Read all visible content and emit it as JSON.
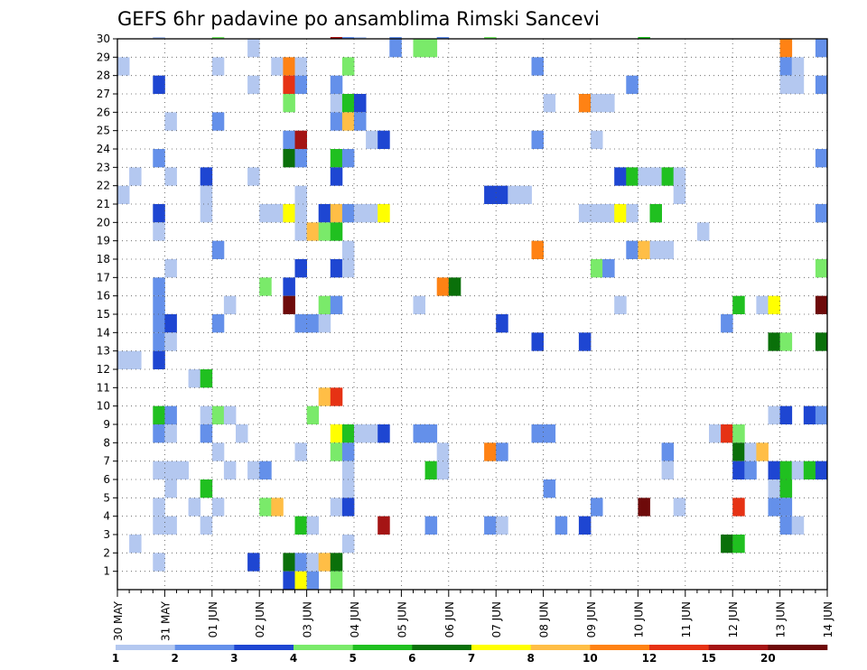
{
  "chart_data": {
    "type": "heatmap",
    "title": "GEFS 6hr padavine po ansamblima Rimski Sancevi",
    "x_tick_labels": [
      "30 MAY",
      "31 MAY",
      "01 JUN",
      "02 JUN",
      "03 JUN",
      "04 JUN",
      "05 JUN",
      "06 JUN",
      "07 JUN",
      "08 JUN",
      "09 JUN",
      "10 JUN",
      "11 JUN",
      "12 JUN",
      "13 JUN",
      "14 JUN"
    ],
    "y_tick_labels": [
      "1",
      "2",
      "3",
      "4",
      "5",
      "6",
      "7",
      "8",
      "9",
      "10",
      "11",
      "12",
      "13",
      "14",
      "15",
      "16",
      "17",
      "18",
      "19",
      "20",
      "21",
      "22",
      "23",
      "24",
      "25",
      "26",
      "27",
      "28",
      "29",
      "30"
    ],
    "x_unit": "6h step from 30 MAY 00Z",
    "x_range": [
      0,
      60
    ],
    "y_range": [
      0,
      30
    ],
    "colorbar": {
      "labels": [
        "1",
        "2",
        "3",
        "4",
        "5",
        "6",
        "7",
        "8",
        "10",
        "12",
        "15",
        "20"
      ],
      "colors": [
        "#b4c8f0",
        "#6490ea",
        "#1e46d2",
        "#7aea6a",
        "#20c020",
        "#0a700a",
        "#ffff00",
        "#ffbe46",
        "#ff8214",
        "#e63214",
        "#a51414",
        "#6e0a0a"
      ]
    },
    "cells": [
      {
        "m": 30,
        "t": [
          [
            3,
            1
          ],
          [
            8,
            4
          ],
          [
            18,
            11
          ],
          [
            19,
            2
          ],
          [
            20,
            1
          ],
          [
            23,
            2
          ],
          [
            27,
            2
          ],
          [
            31,
            4
          ],
          [
            44,
            5
          ]
        ]
      },
      {
        "m": 29,
        "t": [
          [
            11,
            1
          ],
          [
            23,
            2
          ],
          [
            25,
            4
          ],
          [
            26,
            4
          ],
          [
            56,
            9
          ],
          [
            59,
            2
          ]
        ]
      },
      {
        "m": 28,
        "t": [
          [
            0,
            1
          ],
          [
            8,
            1
          ],
          [
            13,
            1
          ],
          [
            14,
            9
          ],
          [
            15,
            1
          ],
          [
            19,
            4
          ],
          [
            35,
            2
          ],
          [
            56,
            2
          ],
          [
            57,
            1
          ]
        ]
      },
      {
        "m": 27,
        "t": [
          [
            3,
            3
          ],
          [
            11,
            1
          ],
          [
            14,
            10
          ],
          [
            15,
            2
          ],
          [
            18,
            2
          ],
          [
            43,
            2
          ],
          [
            56,
            1
          ],
          [
            57,
            1
          ],
          [
            59,
            2
          ]
        ]
      },
      {
        "m": 26,
        "t": [
          [
            14,
            4
          ],
          [
            18,
            1
          ],
          [
            19,
            5
          ],
          [
            20,
            3
          ],
          [
            36,
            1
          ],
          [
            39,
            9
          ],
          [
            40,
            1
          ],
          [
            41,
            1
          ]
        ]
      },
      {
        "m": 25,
        "t": [
          [
            4,
            1
          ],
          [
            8,
            2
          ],
          [
            18,
            2
          ],
          [
            19,
            8
          ],
          [
            20,
            2
          ]
        ]
      },
      {
        "m": 24,
        "t": [
          [
            14,
            2
          ],
          [
            15,
            11
          ],
          [
            21,
            1
          ],
          [
            22,
            3
          ],
          [
            35,
            2
          ],
          [
            40,
            1
          ]
        ]
      },
      {
        "m": 23,
        "t": [
          [
            3,
            2
          ],
          [
            14,
            6
          ],
          [
            15,
            2
          ],
          [
            18,
            5
          ],
          [
            19,
            2
          ],
          [
            59,
            2
          ]
        ]
      },
      {
        "m": 22,
        "t": [
          [
            1,
            1
          ],
          [
            4,
            1
          ],
          [
            7,
            3
          ],
          [
            11,
            1
          ],
          [
            18,
            3
          ],
          [
            42,
            3
          ],
          [
            43,
            5
          ],
          [
            44,
            1
          ],
          [
            45,
            1
          ],
          [
            46,
            5
          ],
          [
            47,
            1
          ]
        ]
      },
      {
        "m": 21,
        "t": [
          [
            0,
            1
          ],
          [
            7,
            1
          ],
          [
            15,
            1
          ],
          [
            31,
            3
          ],
          [
            32,
            3
          ],
          [
            33,
            1
          ],
          [
            34,
            1
          ],
          [
            47,
            1
          ]
        ]
      },
      {
        "m": 20,
        "t": [
          [
            3,
            3
          ],
          [
            7,
            1
          ],
          [
            12,
            1
          ],
          [
            13,
            1
          ],
          [
            14,
            7
          ],
          [
            15,
            1
          ],
          [
            17,
            3
          ],
          [
            18,
            8
          ],
          [
            19,
            2
          ],
          [
            20,
            1
          ],
          [
            21,
            1
          ],
          [
            22,
            7
          ],
          [
            39,
            1
          ],
          [
            40,
            1
          ],
          [
            41,
            1
          ],
          [
            42,
            7
          ],
          [
            43,
            1
          ],
          [
            45,
            5
          ],
          [
            59,
            2
          ]
        ]
      },
      {
        "m": 19,
        "t": [
          [
            3,
            1
          ],
          [
            15,
            1
          ],
          [
            16,
            8
          ],
          [
            17,
            4
          ],
          [
            18,
            5
          ],
          [
            49,
            1
          ]
        ]
      },
      {
        "m": 18,
        "t": [
          [
            8,
            2
          ],
          [
            19,
            1
          ],
          [
            35,
            9
          ],
          [
            43,
            2
          ],
          [
            44,
            8
          ],
          [
            45,
            1
          ],
          [
            46,
            1
          ]
        ]
      },
      {
        "m": 17,
        "t": [
          [
            4,
            1
          ],
          [
            15,
            3
          ],
          [
            18,
            3
          ],
          [
            19,
            1
          ],
          [
            40,
            4
          ],
          [
            41,
            2
          ],
          [
            59,
            4
          ]
        ]
      },
      {
        "m": 16,
        "t": [
          [
            3,
            2
          ],
          [
            12,
            4
          ],
          [
            14,
            3
          ],
          [
            27,
            9
          ],
          [
            28,
            6
          ]
        ]
      },
      {
        "m": 15,
        "t": [
          [
            3,
            2
          ],
          [
            9,
            1
          ],
          [
            14,
            12
          ],
          [
            17,
            4
          ],
          [
            18,
            2
          ],
          [
            25,
            1
          ],
          [
            42,
            1
          ],
          [
            52,
            5
          ],
          [
            54,
            1
          ],
          [
            55,
            7
          ],
          [
            59,
            12
          ]
        ]
      },
      {
        "m": 14,
        "t": [
          [
            3,
            2
          ],
          [
            4,
            3
          ],
          [
            8,
            2
          ],
          [
            15,
            2
          ],
          [
            16,
            2
          ],
          [
            17,
            1
          ],
          [
            32,
            3
          ],
          [
            51,
            2
          ]
        ]
      },
      {
        "m": 13,
        "t": [
          [
            3,
            2
          ],
          [
            4,
            1
          ],
          [
            35,
            3
          ],
          [
            39,
            3
          ],
          [
            55,
            6
          ],
          [
            56,
            4
          ],
          [
            59,
            6
          ]
        ]
      },
      {
        "m": 12,
        "t": [
          [
            0,
            1
          ],
          [
            1,
            1
          ],
          [
            3,
            3
          ]
        ]
      },
      {
        "m": 11,
        "t": [
          [
            6,
            1
          ],
          [
            7,
            5
          ]
        ]
      },
      {
        "m": 10,
        "t": [
          [
            17,
            8
          ],
          [
            18,
            10
          ]
        ]
      },
      {
        "m": 9,
        "t": [
          [
            3,
            5
          ],
          [
            4,
            2
          ],
          [
            7,
            1
          ],
          [
            8,
            4
          ],
          [
            9,
            1
          ],
          [
            16,
            4
          ],
          [
            55,
            1
          ],
          [
            56,
            3
          ],
          [
            58,
            3
          ],
          [
            59,
            2
          ]
        ]
      },
      {
        "m": 8,
        "t": [
          [
            3,
            2
          ],
          [
            4,
            1
          ],
          [
            7,
            2
          ],
          [
            10,
            1
          ],
          [
            18,
            7
          ],
          [
            19,
            5
          ],
          [
            20,
            1
          ],
          [
            21,
            1
          ],
          [
            22,
            3
          ],
          [
            25,
            2
          ],
          [
            26,
            2
          ],
          [
            35,
            2
          ],
          [
            36,
            2
          ],
          [
            50,
            1
          ],
          [
            51,
            10
          ],
          [
            52,
            4
          ]
        ]
      },
      {
        "m": 7,
        "t": [
          [
            8,
            1
          ],
          [
            15,
            1
          ],
          [
            18,
            4
          ],
          [
            19,
            2
          ],
          [
            27,
            1
          ],
          [
            31,
            9
          ],
          [
            32,
            2
          ],
          [
            46,
            2
          ],
          [
            52,
            6
          ],
          [
            53,
            1
          ],
          [
            54,
            8
          ]
        ]
      },
      {
        "m": 6,
        "t": [
          [
            3,
            1
          ],
          [
            4,
            1
          ],
          [
            5,
            1
          ],
          [
            9,
            1
          ],
          [
            11,
            1
          ],
          [
            12,
            2
          ],
          [
            19,
            1
          ],
          [
            26,
            5
          ],
          [
            27,
            1
          ],
          [
            46,
            1
          ],
          [
            52,
            3
          ],
          [
            53,
            2
          ],
          [
            55,
            3
          ],
          [
            56,
            5
          ],
          [
            57,
            1
          ],
          [
            58,
            5
          ],
          [
            59,
            3
          ]
        ]
      },
      {
        "m": 5,
        "t": [
          [
            4,
            1
          ],
          [
            7,
            5
          ],
          [
            19,
            1
          ],
          [
            36,
            2
          ],
          [
            55,
            1
          ],
          [
            56,
            5
          ]
        ]
      },
      {
        "m": 4,
        "t": [
          [
            3,
            1
          ],
          [
            6,
            1
          ],
          [
            8,
            1
          ],
          [
            12,
            4
          ],
          [
            13,
            8
          ],
          [
            18,
            1
          ],
          [
            19,
            3
          ],
          [
            40,
            2
          ],
          [
            44,
            12
          ],
          [
            47,
            1
          ],
          [
            52,
            10
          ],
          [
            55,
            2
          ],
          [
            56,
            2
          ]
        ]
      },
      {
        "m": 3,
        "t": [
          [
            3,
            1
          ],
          [
            4,
            1
          ],
          [
            7,
            1
          ],
          [
            15,
            5
          ],
          [
            16,
            1
          ],
          [
            22,
            11
          ],
          [
            26,
            2
          ],
          [
            31,
            2
          ],
          [
            32,
            1
          ],
          [
            37,
            2
          ],
          [
            39,
            3
          ],
          [
            56,
            2
          ],
          [
            57,
            1
          ]
        ]
      },
      {
        "m": 2,
        "t": [
          [
            1,
            1
          ],
          [
            19,
            1
          ],
          [
            51,
            6
          ],
          [
            52,
            5
          ]
        ]
      },
      {
        "m": 1,
        "t": [
          [
            3,
            1
          ],
          [
            11,
            3
          ],
          [
            14,
            6
          ],
          [
            15,
            2
          ],
          [
            16,
            1
          ],
          [
            17,
            8
          ],
          [
            18,
            6
          ]
        ]
      },
      {
        "m": 0,
        "t": [
          [
            14,
            3
          ],
          [
            15,
            7
          ],
          [
            16,
            2
          ],
          [
            18,
            4
          ]
        ]
      }
    ]
  }
}
